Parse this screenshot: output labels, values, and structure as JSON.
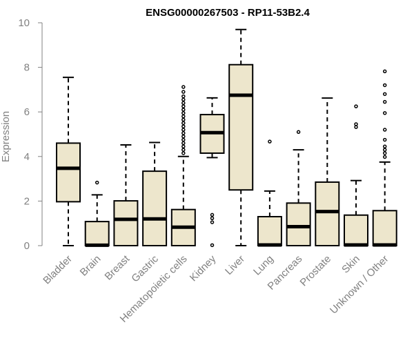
{
  "chart_data": {
    "type": "boxplot",
    "title": "ENSG00000267503 - RP11-53B2.4",
    "xlabel": "",
    "ylabel": "Expression",
    "ylim": [
      0,
      10
    ],
    "yticks": [
      0,
      2,
      4,
      6,
      8,
      10
    ],
    "box_fill": "#ede6cc",
    "box_stroke": "#000000",
    "axis_color": "#808080",
    "categories": [
      "Bladder",
      "Brain",
      "Breast",
      "Gastric",
      "Hematopoietic cells",
      "Kidney",
      "Liver",
      "Lung",
      "Pancreas",
      "Prostate",
      "Skin",
      "Unknown / Other"
    ],
    "boxes": [
      {
        "name": "Bladder",
        "min": 0,
        "q1": 1.97,
        "median": 3.47,
        "q3": 4.6,
        "max": 7.55,
        "outliers": []
      },
      {
        "name": "Brain",
        "min": 0,
        "q1": 0,
        "median": 0.02,
        "q3": 1.08,
        "max": 2.28,
        "outliers": [
          2.83
        ]
      },
      {
        "name": "Breast",
        "min": 0,
        "q1": 0,
        "median": 1.18,
        "q3": 2.01,
        "max": 4.52,
        "outliers": []
      },
      {
        "name": "Gastric",
        "min": 0,
        "q1": 0,
        "median": 1.2,
        "q3": 3.34,
        "max": 4.63,
        "outliers": []
      },
      {
        "name": "Hematopoietic cells",
        "min": 0,
        "q1": 0,
        "median": 0.83,
        "q3": 1.62,
        "max": 4.0,
        "outliers": [
          4.15,
          4.3,
          4.45,
          4.6,
          4.75,
          4.9,
          5.05,
          5.2,
          5.35,
          5.5,
          5.65,
          5.8,
          5.95,
          6.1,
          6.25,
          6.4,
          6.55,
          6.7,
          6.9,
          7.12
        ]
      },
      {
        "name": "Kidney",
        "min": 3.95,
        "q1": 4.15,
        "median": 5.07,
        "q3": 5.88,
        "max": 6.63,
        "outliers": [
          1.38,
          1.23,
          1.05,
          0.02
        ]
      },
      {
        "name": "Liver",
        "min": 0,
        "q1": 2.5,
        "median": 6.75,
        "q3": 8.12,
        "max": 9.7,
        "outliers": []
      },
      {
        "name": "Lung",
        "min": 0,
        "q1": 0,
        "median": 0.03,
        "q3": 1.3,
        "max": 2.45,
        "outliers": [
          4.67
        ]
      },
      {
        "name": "Pancreas",
        "min": 0,
        "q1": 0,
        "median": 0.85,
        "q3": 1.91,
        "max": 4.3,
        "outliers": [
          5.1
        ]
      },
      {
        "name": "Prostate",
        "min": 0,
        "q1": 0,
        "median": 1.53,
        "q3": 2.85,
        "max": 6.62,
        "outliers": []
      },
      {
        "name": "Skin",
        "min": 0,
        "q1": 0,
        "median": 0.03,
        "q3": 1.37,
        "max": 2.92,
        "outliers": [
          5.32,
          5.45,
          6.25
        ]
      },
      {
        "name": "Unknown / Other",
        "min": 0,
        "q1": 0,
        "median": 0.03,
        "q3": 1.57,
        "max": 3.75,
        "outliers": [
          3.98,
          4.15,
          4.3,
          4.45,
          4.75,
          5.2,
          5.95,
          6.45,
          6.8,
          7.2,
          7.82
        ]
      }
    ]
  }
}
